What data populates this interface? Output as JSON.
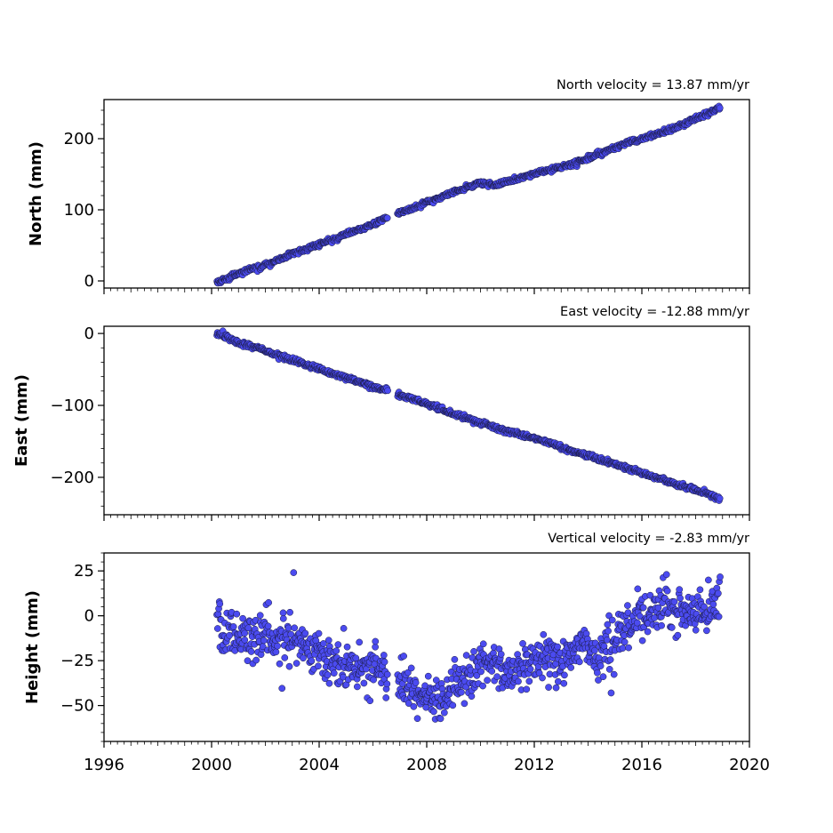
{
  "chart_data": [
    {
      "type": "scatter",
      "title": "North velocity = 13.87 mm/yr",
      "ylabel": "North (mm)",
      "xlim": [
        1996,
        2020
      ],
      "ylim": [
        -10,
        255
      ],
      "yticks": [
        0,
        100,
        200
      ],
      "ytick_labels": [
        "0",
        "100",
        "200"
      ],
      "xticks": [
        1996,
        2000,
        2004,
        2008,
        2012,
        2016,
        2020
      ],
      "xtick_labels": [],
      "marker_color": "#4b4bf0",
      "series": [
        {
          "x": [
            2000.2,
            2000.6,
            2001.0,
            2001.5,
            2002.0,
            2002.5,
            2003.0,
            2003.5,
            2004.0,
            2004.5,
            2005.0,
            2005.5,
            2006.0,
            2006.5,
            2007.0,
            2007.5,
            2008.0,
            2008.5,
            2009.0,
            2009.5,
            2010.0,
            2010.5,
            2011.0,
            2011.5,
            2012.0,
            2012.5,
            2013.0,
            2013.5,
            2014.0,
            2014.5,
            2015.0,
            2015.5,
            2016.0,
            2016.5,
            2017.0,
            2017.5,
            2018.0,
            2018.5,
            2018.9
          ],
          "y": [
            -2,
            4,
            10,
            17,
            22,
            30,
            38,
            45,
            52,
            58,
            66,
            73,
            80,
            88,
            96,
            103,
            110,
            117,
            125,
            132,
            137,
            135,
            140,
            145,
            150,
            156,
            160,
            166,
            172,
            180,
            187,
            195,
            200,
            206,
            212,
            220,
            228,
            236,
            244
          ]
        }
      ]
    },
    {
      "type": "scatter",
      "title": "East velocity = -12.88 mm/yr",
      "ylabel": "East (mm)",
      "xlim": [
        1996,
        2020
      ],
      "ylim": [
        -252,
        10
      ],
      "yticks": [
        0,
        -100,
        -200
      ],
      "ytick_labels": [
        "0",
        "−100",
        "−200"
      ],
      "xticks": [
        1996,
        2000,
        2004,
        2008,
        2012,
        2016,
        2020
      ],
      "xtick_labels": [],
      "marker_color": "#4b4bf0",
      "series": [
        {
          "x": [
            2000.2,
            2000.6,
            2001.0,
            2001.5,
            2002.0,
            2002.5,
            2003.0,
            2003.5,
            2004.0,
            2004.5,
            2005.0,
            2005.5,
            2006.0,
            2006.5,
            2007.0,
            2007.5,
            2008.0,
            2008.5,
            2009.0,
            2009.5,
            2010.0,
            2010.5,
            2011.0,
            2011.5,
            2012.0,
            2012.5,
            2013.0,
            2013.5,
            2014.0,
            2014.5,
            2015.0,
            2015.5,
            2016.0,
            2016.5,
            2017.0,
            2017.5,
            2018.0,
            2018.5,
            2018.9
          ],
          "y": [
            0,
            -5,
            -12,
            -18,
            -24,
            -31,
            -37,
            -43,
            -49,
            -56,
            -62,
            -68,
            -74,
            -79,
            -86,
            -92,
            -98,
            -105,
            -112,
            -118,
            -124,
            -130,
            -135,
            -141,
            -146,
            -152,
            -158,
            -164,
            -170,
            -176,
            -182,
            -188,
            -194,
            -200,
            -206,
            -212,
            -218,
            -224,
            -230
          ]
        }
      ]
    },
    {
      "type": "scatter",
      "title": "Vertical velocity = -2.83 mm/yr",
      "ylabel": "Height (mm)",
      "xlim": [
        1996,
        2020
      ],
      "ylim": [
        -70,
        35
      ],
      "yticks": [
        25,
        0,
        -25,
        -50
      ],
      "ytick_labels": [
        "25",
        "0",
        "−25",
        "−50"
      ],
      "xticks": [
        1996,
        2000,
        2004,
        2008,
        2012,
        2016,
        2020
      ],
      "xtick_labels": [
        "1996",
        "2000",
        "2004",
        "2008",
        "2012",
        "2016",
        "2020"
      ],
      "marker_color": "#4b4bf0",
      "series": [
        {
          "x": [
            2000.2,
            2000.6,
            2001.0,
            2001.5,
            2002.0,
            2002.5,
            2003.0,
            2003.5,
            2004.0,
            2004.5,
            2005.0,
            2005.5,
            2006.0,
            2006.4,
            2007.0,
            2007.5,
            2008.0,
            2008.5,
            2009.0,
            2009.5,
            2010.0,
            2010.5,
            2011.0,
            2011.5,
            2012.0,
            2012.5,
            2013.0,
            2013.5,
            2014.0,
            2014.5,
            2015.0,
            2015.5,
            2016.0,
            2016.5,
            2017.0,
            2017.5,
            2018.0,
            2018.5,
            2018.9
          ],
          "y": [
            -5,
            -8,
            -10,
            -12,
            -9,
            -14,
            -12,
            -18,
            -22,
            -25,
            -28,
            -32,
            -25,
            -30,
            -38,
            -42,
            -45,
            -50,
            -40,
            -35,
            -30,
            -28,
            -32,
            -30,
            -25,
            -22,
            -25,
            -20,
            -18,
            -22,
            -15,
            -5,
            2,
            0,
            5,
            3,
            2,
            8,
            5
          ]
        }
      ]
    }
  ]
}
